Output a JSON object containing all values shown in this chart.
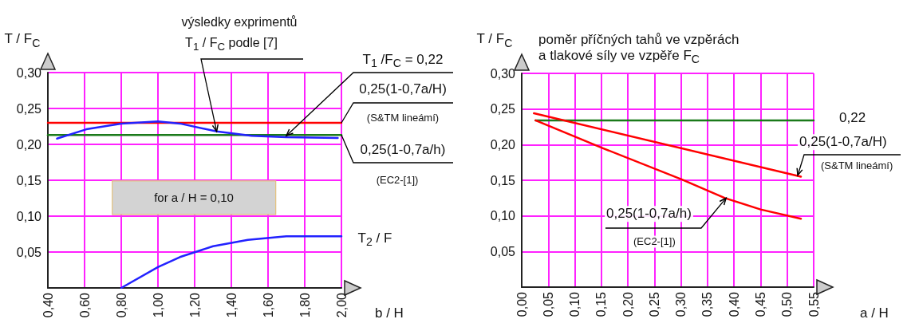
{
  "chart_data": [
    {
      "type": "line",
      "xlabel": "b / H",
      "ylabel": "T / F$_{C}$",
      "grid": true,
      "marker": "none",
      "line_style": "solid",
      "xlim": [
        0.4,
        2.0
      ],
      "xticks": [
        {
          "value": 0.4,
          "label": "0,40"
        },
        {
          "value": 0.6,
          "label": "0,60"
        },
        {
          "value": 0.8,
          "label": "0,80"
        },
        {
          "value": 1.0,
          "label": "1,00"
        },
        {
          "value": 1.2,
          "label": "1,20"
        },
        {
          "value": 1.4,
          "label": "1,40"
        },
        {
          "value": 1.6,
          "label": "1,60"
        },
        {
          "value": 1.8,
          "label": "1,80"
        },
        {
          "value": 2.0,
          "label": "2,00"
        }
      ],
      "ylim": [
        0,
        0.3
      ],
      "yticks": [
        {
          "value": 0,
          "label": null
        },
        {
          "value": 0.05,
          "label": "0,05"
        },
        {
          "value": 0.1,
          "label": "0,10"
        },
        {
          "value": 0.15,
          "label": "0,15"
        },
        {
          "value": 0.2,
          "label": "0,20"
        },
        {
          "value": 0.25,
          "label": "0,25"
        },
        {
          "value": 0.3,
          "label": "0,30"
        }
      ],
      "series": [
        {
          "color": "#ff0000",
          "x": [
            0.4,
            2.0
          ],
          "values": [
            0.23,
            0.23
          ]
        },
        {
          "color": "#1a7a1a",
          "x": [
            0.4,
            2.0
          ],
          "values": [
            0.213,
            0.213
          ]
        },
        {
          "color": "#2222ff",
          "x": [
            0.45,
            0.61,
            0.8,
            1.0,
            1.12,
            1.32,
            1.51,
            1.7,
            1.98
          ],
          "values": [
            0.208,
            0.221,
            0.229,
            0.232,
            0.229,
            0.218,
            0.212,
            0.21,
            0.209
          ]
        },
        {
          "color": "#2222ff",
          "x": [
            0.8,
            1.0,
            1.12,
            1.3,
            1.49,
            1.7,
            2.0
          ],
          "values": [
            0,
            0.029,
            0.043,
            0.058,
            0.067,
            0.072,
            0.072
          ]
        }
      ],
      "annotations": [
        "výsledky exprimentů",
        {
          "text": "T$_{1}$ / F$_{C}$ podle [7]",
          "x": 1.32,
          "y": 0.218
        },
        {
          "text": "T$_{1}$ /F$_{C}$ = 0,22",
          "x": 1.7,
          "y": 0.212
        },
        {
          "text": "0,25(1-0,7a/H)",
          "x": 2.0,
          "y": 0.23
        },
        "(S&TM lineámí)",
        {
          "text": "0,25(1-0,7a/h)",
          "x": 2.0,
          "y": 0.213
        },
        "(EC2-[1])",
        "for a / H = 0,10",
        "T$_{2}$ / F"
      ]
    },
    {
      "type": "line",
      "title": "poměr příčných tahů ve vzpěrách\na tlakové síly ve vzpěře F$_{C}$",
      "xlabel": "a / H",
      "ylabel": "T / F$_{C}$",
      "grid": true,
      "marker": "none",
      "line_style": "solid",
      "xlim": [
        0,
        0.55
      ],
      "xticks": [
        {
          "value": 0,
          "label": "0,00"
        },
        {
          "value": 0.05,
          "label": "0,05"
        },
        {
          "value": 0.1,
          "label": "0,10"
        },
        {
          "value": 0.15,
          "label": "0,15"
        },
        {
          "value": 0.2,
          "label": "0,20"
        },
        {
          "value": 0.25,
          "label": "0,25"
        },
        {
          "value": 0.3,
          "label": "0,30"
        },
        {
          "value": 0.35,
          "label": "0,35"
        },
        {
          "value": 0.4,
          "label": "0,40"
        },
        {
          "value": 0.45,
          "label": "0,45"
        },
        {
          "value": 0.5,
          "label": "0,50"
        },
        {
          "value": 0.55,
          "label": "0,55"
        }
      ],
      "ylim": [
        0,
        0.3
      ],
      "yticks": [
        {
          "value": 0,
          "label": null
        },
        {
          "value": 0.05,
          "label": "0,05"
        },
        {
          "value": 0.1,
          "label": "0,10"
        },
        {
          "value": 0.15,
          "label": "0,15"
        },
        {
          "value": 0.2,
          "label": "0,20"
        },
        {
          "value": 0.25,
          "label": "0,25"
        },
        {
          "value": 0.3,
          "label": "0,30"
        }
      ],
      "series": [
        {
          "color": "#1a7a1a",
          "x": [
            0.026,
            0.55
          ],
          "values": [
            0.234,
            0.234
          ]
        },
        {
          "color": "#ff0000",
          "x": [
            0.023,
            0.526
          ],
          "values": [
            0.244,
            0.155
          ]
        },
        {
          "color": "#ff0000",
          "x": [
            0.026,
            0.153,
            0.302,
            0.383,
            0.45,
            0.526
          ],
          "values": [
            0.234,
            0.195,
            0.151,
            0.125,
            0.109,
            0.096
          ]
        }
      ],
      "annotations": [
        "0,22",
        {
          "text": "0,25(1-0,7a/H)",
          "x": 0.52,
          "y": 0.157
        },
        "(S&TM lineámí)",
        {
          "text": "0,25(1-0,7a/h)",
          "x": 0.385,
          "y": 0.125
        },
        "(EC2-[1])"
      ]
    }
  ]
}
